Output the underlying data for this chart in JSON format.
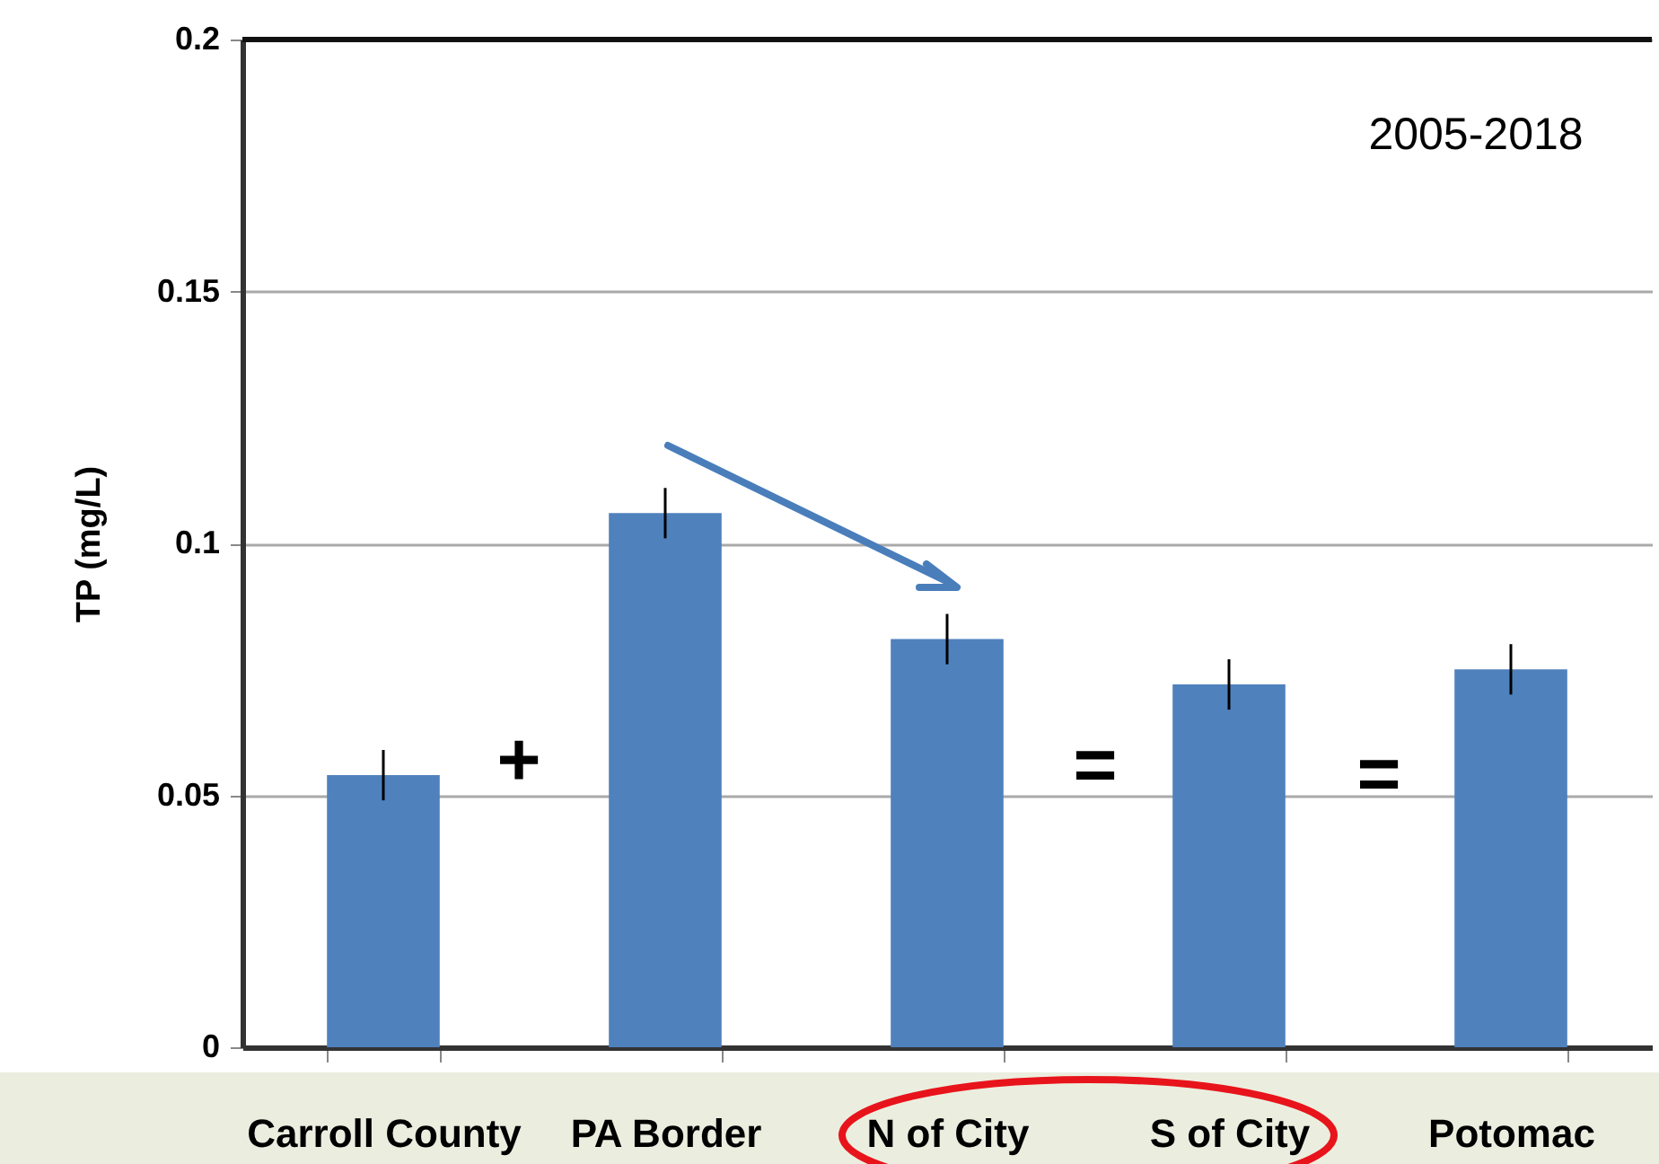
{
  "chart_data": {
    "type": "bar",
    "ylabel": "TP (mg/L)",
    "categories": [
      "Carroll County",
      "PA Border",
      "N of City",
      "S of City",
      "Potomac"
    ],
    "values": [
      0.054,
      0.106,
      0.081,
      0.072,
      0.075
    ],
    "errors": [
      0.005,
      0.005,
      0.005,
      0.005,
      0.005
    ],
    "color": "#4f81bd",
    "ylim": [
      0,
      0.2
    ],
    "yticks": [
      0,
      0.05,
      0.1,
      0.15,
      0.2
    ],
    "grid": "y",
    "annotations": [
      "2005-2018",
      "+",
      "=",
      "="
    ]
  }
}
